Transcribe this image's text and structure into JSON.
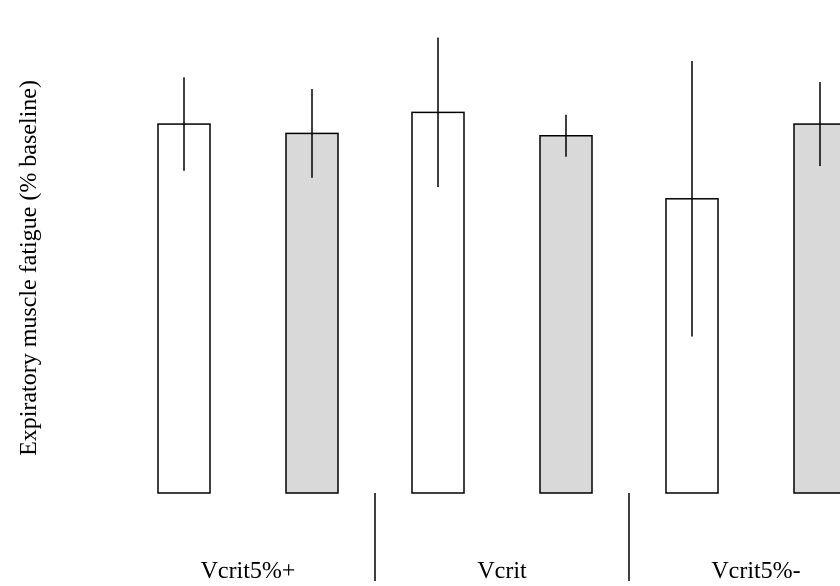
{
  "chart_data": {
    "type": "bar",
    "ylabel": "Expiratory muscle fatigue  (% baseline)",
    "xlabel": "",
    "groups": [
      "Vcrit5%+",
      "Vcrit",
      "Vcrit5%-"
    ],
    "series": [
      {
        "fill": "#ffffff",
        "values": [
          79,
          81.5,
          63
        ],
        "errors": [
          10,
          16,
          29.5
        ]
      },
      {
        "fill": "#d9d9d9",
        "values": [
          77,
          76.5,
          79
        ],
        "errors": [
          9.5,
          4.5,
          9
        ]
      }
    ],
    "ylim": [
      0,
      100
    ],
    "grid": false,
    "legend": "none"
  }
}
